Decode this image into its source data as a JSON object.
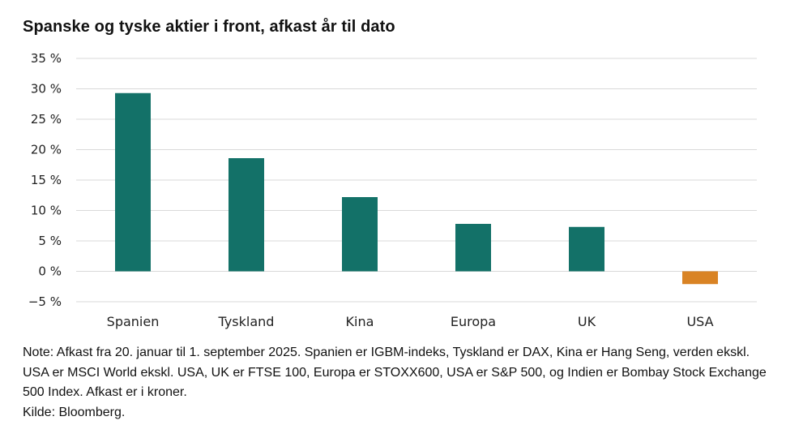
{
  "chart_data": {
    "type": "bar",
    "title": "Spanske og tyske aktier i front, afkast år til dato",
    "categories": [
      "Spanien",
      "Tyskland",
      "Kina",
      "Europa",
      "UK",
      "USA"
    ],
    "values": [
      29.3,
      18.6,
      12.2,
      7.8,
      7.3,
      -2.1
    ],
    "ylim": [
      -5,
      35
    ],
    "yticks": [
      35,
      30,
      25,
      20,
      15,
      10,
      5,
      0,
      -5
    ],
    "ytick_labels": [
      "35 %",
      "30 %",
      "25 %",
      "20 %",
      "15 %",
      "10 %",
      "5 %",
      "0 %",
      "−5 %"
    ],
    "xlabel": "",
    "ylabel": "",
    "grid": true,
    "colors": {
      "positive": "#137168",
      "negative": "#d98324",
      "grid": "#d9d9d9"
    }
  },
  "footnote": {
    "note": "Note: Afkast fra 20. januar til 1. september 2025. Spanien er IGBM-indeks, Tyskland er DAX, Kina er Hang Seng, verden ekskl. USA er MSCI World ekskl. USA, UK er FTSE 100, Europa er STOXX600, USA er S&P 500, og Indien er Bombay Stock Exchange 500 Index. Afkast er i kroner.",
    "source": "Kilde: Bloomberg."
  }
}
